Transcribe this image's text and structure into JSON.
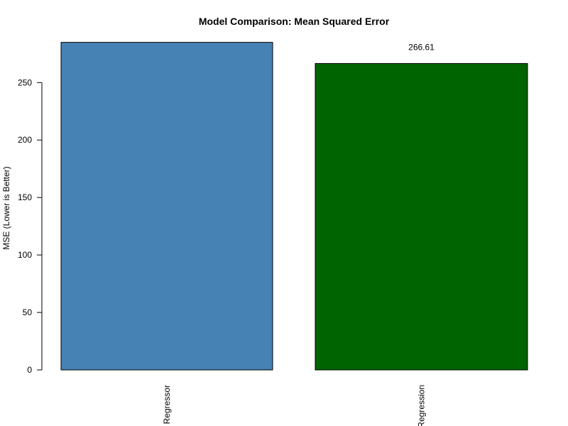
{
  "chart_data": {
    "type": "bar",
    "title": "Model Comparison: Mean Squared Error",
    "xlabel": "",
    "ylabel": "MSE (Lower is Better)",
    "categories": [
      "Regressor",
      "Regression"
    ],
    "values": [
      285.0,
      266.61
    ],
    "data_labels": [
      "",
      "266.61"
    ],
    "bar_colors": [
      "#4682B4",
      "#006400"
    ],
    "ylim": [
      0,
      285.0
    ],
    "yticks": [
      0,
      50,
      100,
      150,
      200,
      250
    ],
    "grid": false,
    "legend": "none"
  }
}
